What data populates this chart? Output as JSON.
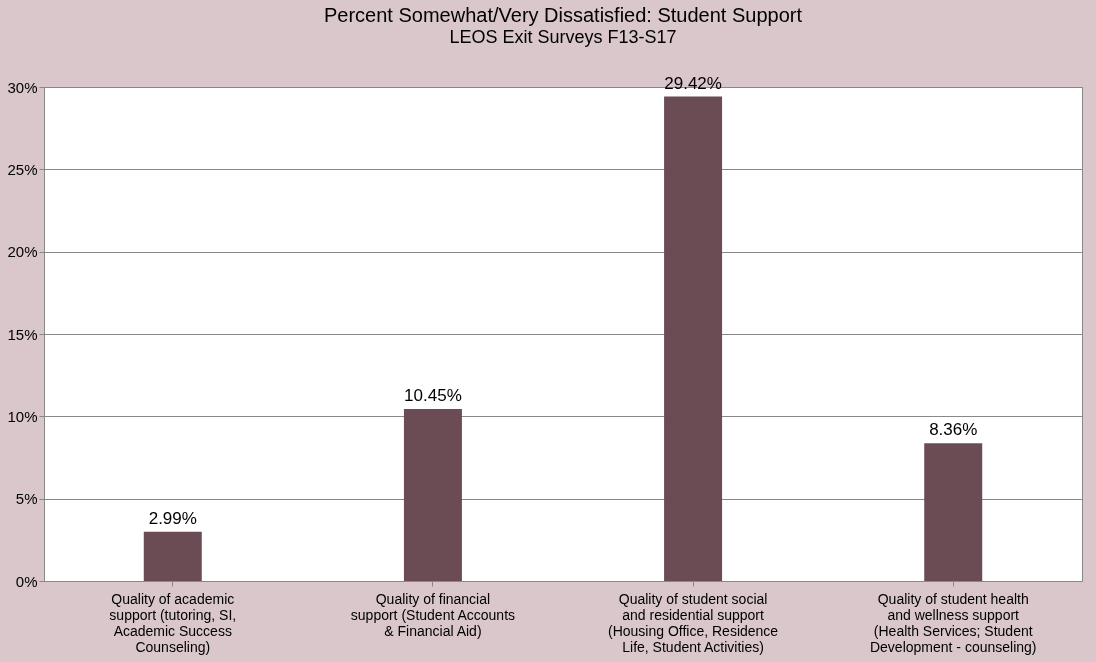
{
  "chart_data": {
    "type": "bar",
    "title": "Percent Somewhat/Very Dissatisfied: Student Support",
    "subtitle": "LEOS Exit Surveys F13-S17",
    "categories": [
      "Quality of academic support (tutoring, SI, Academic Success Counseling)",
      "Quality of financial support (Student Accounts & Financial Aid)",
      "Quality of student social and residential support (Housing Office, Residence Life, Student Activities)",
      "Quality of student health and wellness support (Health Services; Student Development - counseling)"
    ],
    "values": [
      2.99,
      10.45,
      29.42,
      8.36
    ],
    "value_labels": [
      "2.99%",
      "10.45%",
      "29.42%",
      "8.36%"
    ],
    "color": "#6b4c55",
    "ylim": [
      0,
      30
    ],
    "yticks": [
      {
        "value": 0,
        "label": "0%"
      },
      {
        "value": 5,
        "label": "5%"
      },
      {
        "value": 10,
        "label": "10%"
      },
      {
        "value": 15,
        "label": "15%"
      },
      {
        "value": 20,
        "label": "20%"
      },
      {
        "value": 25,
        "label": "25%"
      },
      {
        "value": 30,
        "label": "30%"
      }
    ],
    "grid": "y"
  }
}
